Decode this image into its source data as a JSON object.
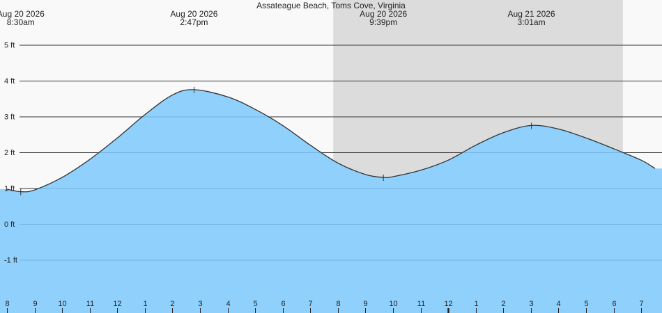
{
  "chart_data": {
    "type": "area",
    "title": "Assateague Beach, Toms Cove, Virginia",
    "y_unit": "ft",
    "ylim": [
      -2.0,
      5.5
    ],
    "y_ticks": [
      5,
      4,
      3,
      2,
      1,
      0,
      -1
    ],
    "y_tick_labels": [
      "5 ft",
      "4 ft",
      "3 ft",
      "2 ft",
      "1 ft",
      "0 ft",
      "-1 ft"
    ],
    "x_range": [
      "2026-08-20T08:00",
      "2026-08-21T07:30"
    ],
    "x_tick_times": [
      "2026-08-20T08:00",
      "2026-08-20T09:00",
      "2026-08-20T10:00",
      "2026-08-20T11:00",
      "2026-08-20T12:00",
      "2026-08-20T13:00",
      "2026-08-20T14:00",
      "2026-08-20T15:00",
      "2026-08-20T16:00",
      "2026-08-20T17:00",
      "2026-08-20T18:00",
      "2026-08-20T19:00",
      "2026-08-20T20:00",
      "2026-08-20T21:00",
      "2026-08-20T22:00",
      "2026-08-20T23:00",
      "2026-08-21T00:00",
      "2026-08-21T01:00",
      "2026-08-21T02:00",
      "2026-08-21T03:00",
      "2026-08-21T04:00",
      "2026-08-21T05:00",
      "2026-08-21T06:00",
      "2026-08-21T07:00"
    ],
    "x_tick_labels": [
      "8",
      "9",
      "10",
      "11",
      "12",
      "1",
      "2",
      "3",
      "4",
      "5",
      "6",
      "7",
      "8",
      "9",
      "10",
      "11",
      "12",
      "1",
      "2",
      "3",
      "4",
      "5",
      "6",
      "7"
    ],
    "night_shading": {
      "start": "2026-08-20T19:50",
      "end": "2026-08-21T06:20"
    },
    "extremes": [
      {
        "time": "2026-08-20T08:30",
        "height": 0.9,
        "date_label": "Aug 20 2026",
        "time_label": "8:30am"
      },
      {
        "time": "2026-08-20T14:47",
        "height": 3.75,
        "date_label": "Aug 20 2026",
        "time_label": "2:47pm"
      },
      {
        "time": "2026-08-20T21:39",
        "height": 1.3,
        "date_label": "Aug 20 2026",
        "time_label": "9:39pm"
      },
      {
        "time": "2026-08-21T03:01",
        "height": 2.75,
        "date_label": "Aug 21 2026",
        "time_label": "3:01am"
      }
    ],
    "series": [
      {
        "x": [
          "2026-08-20T08:00",
          "2026-08-20T08:30",
          "2026-08-20T09:00",
          "2026-08-20T10:00",
          "2026-08-20T11:00",
          "2026-08-20T12:00",
          "2026-08-20T13:00",
          "2026-08-20T14:00",
          "2026-08-20T14:47",
          "2026-08-20T16:00",
          "2026-08-20T17:00",
          "2026-08-20T18:00",
          "2026-08-20T19:00",
          "2026-08-20T20:00",
          "2026-08-20T21:00",
          "2026-08-20T21:39",
          "2026-08-20T22:00",
          "2026-08-20T23:00",
          "2026-08-21T00:00",
          "2026-08-21T01:00",
          "2026-08-21T02:00",
          "2026-08-21T03:01",
          "2026-08-21T04:00",
          "2026-08-21T05:00",
          "2026-08-21T06:00",
          "2026-08-21T07:00",
          "2026-08-21T07:30"
        ],
        "y": [
          0.97,
          0.9,
          0.95,
          1.3,
          1.8,
          2.4,
          3.05,
          3.6,
          3.75,
          3.55,
          3.2,
          2.75,
          2.2,
          1.7,
          1.38,
          1.3,
          1.32,
          1.5,
          1.78,
          2.2,
          2.55,
          2.75,
          2.65,
          2.4,
          2.1,
          1.78,
          1.55
        ]
      }
    ],
    "colors": {
      "background": "#f9f9f9",
      "night": "#dcdcdc",
      "area_fill": "#90d0fd",
      "area_stroke": "#333333",
      "gridline": "#333333"
    }
  }
}
